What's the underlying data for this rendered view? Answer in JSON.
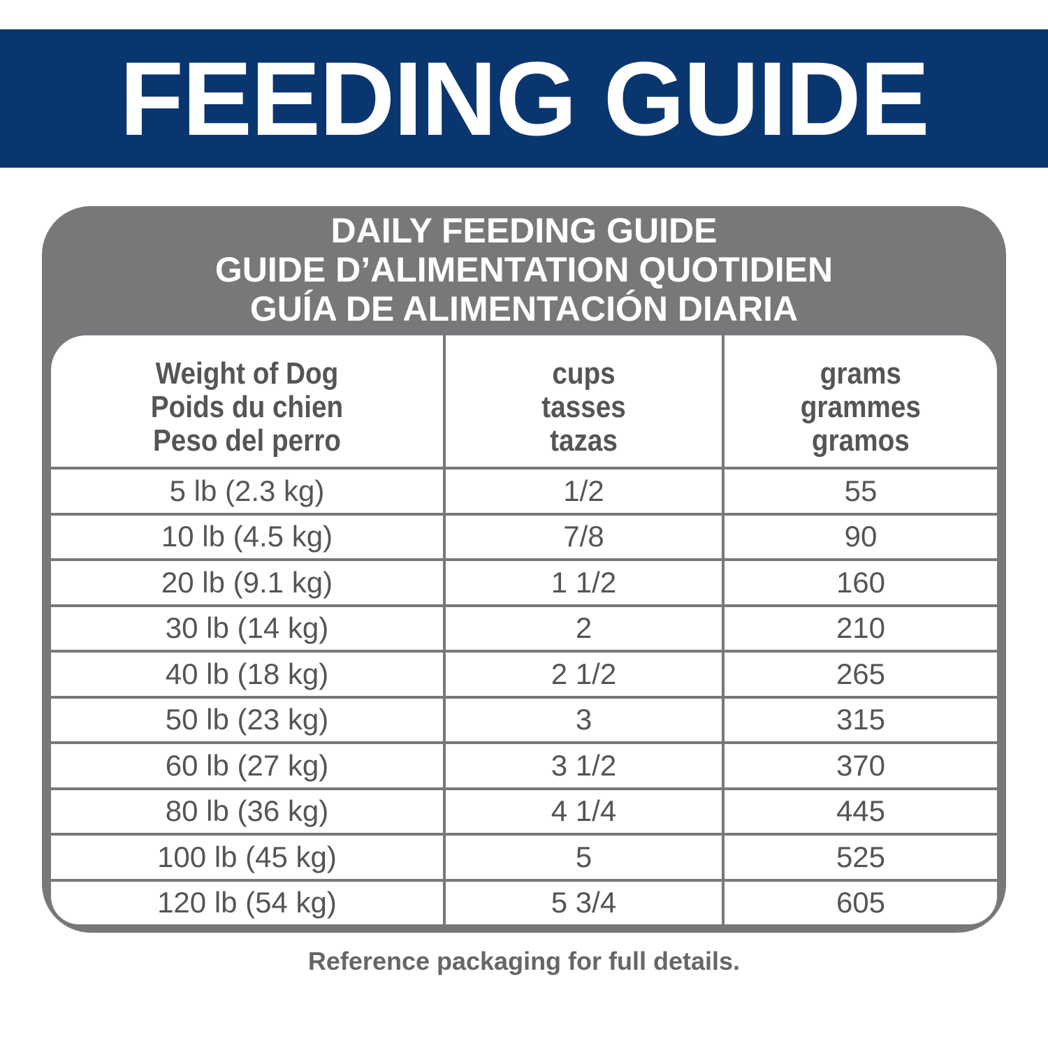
{
  "banner": {
    "title": "FEEDING GUIDE"
  },
  "table": {
    "title": [
      "DAILY FEEDING GUIDE",
      "GUIDE D’ALIMENTATION QUOTIDIEN",
      "GUÍA DE ALIMENTACIÓN DIARIA"
    ],
    "headers": [
      [
        "Weight of Dog",
        "Poids du chien",
        "Peso del perro"
      ],
      [
        "cups",
        "tasses",
        "tazas"
      ],
      [
        "grams",
        "grammes",
        "gramos"
      ]
    ],
    "rows": [
      [
        "5 lb (2.3 kg)",
        "1/2",
        55
      ],
      [
        "10 lb (4.5 kg)",
        "7/8",
        90
      ],
      [
        "20 lb (9.1 kg)",
        "1 1/2",
        160
      ],
      [
        "30 lb (14 kg)",
        "2",
        210
      ],
      [
        "40 lb (18 kg)",
        "2 1/2",
        265
      ],
      [
        "50 lb (23 kg)",
        "3",
        315
      ],
      [
        "60 lb (27 kg)",
        "3 1/2",
        370
      ],
      [
        "80 lb (36 kg)",
        "4 1/4",
        445
      ],
      [
        "100 lb (45 kg)",
        "5",
        525
      ],
      [
        "120 lb (54 kg)",
        "5 3/4",
        605
      ]
    ]
  },
  "footer": "Reference packaging for full details."
}
